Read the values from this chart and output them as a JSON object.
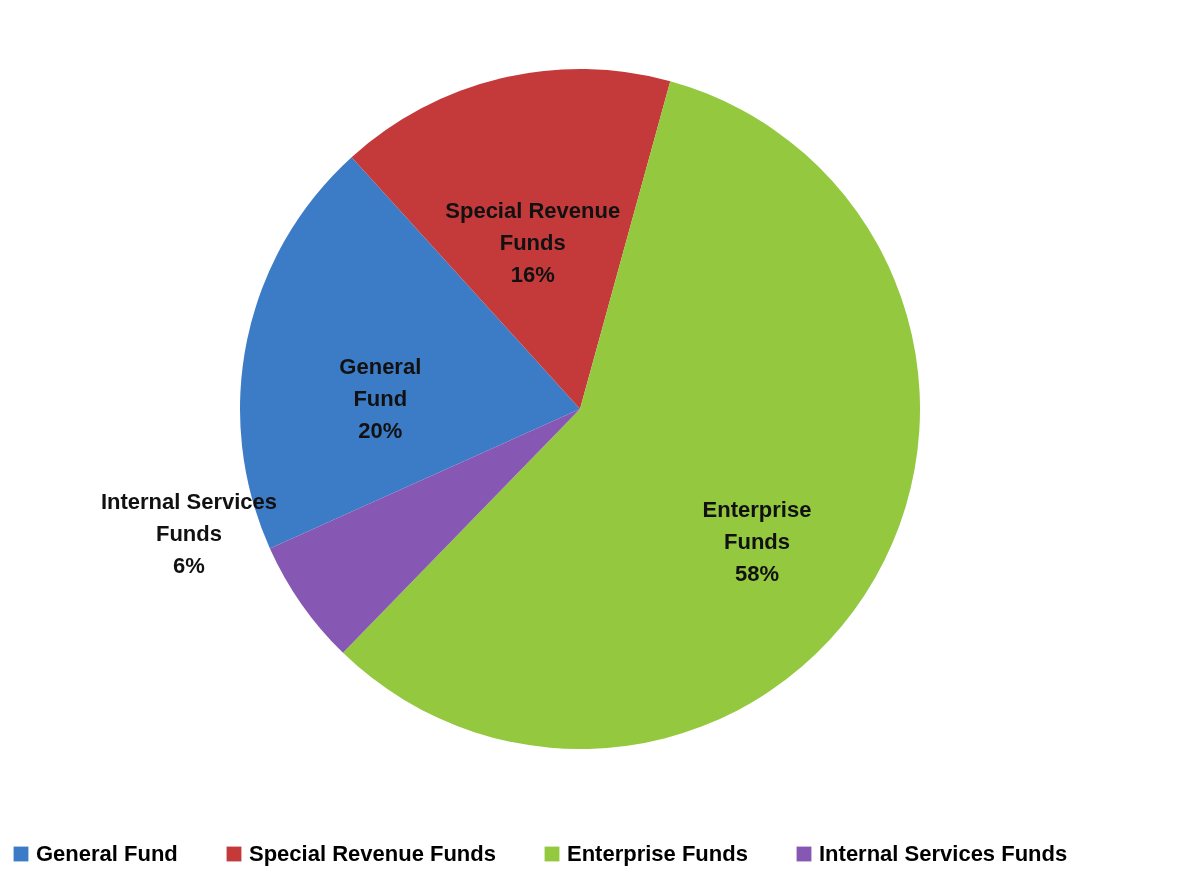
{
  "chart_data": {
    "type": "pie",
    "categories": [
      "General Fund",
      "Special Revenue Funds",
      "Enterprise Funds",
      "Internal Services Funds"
    ],
    "values": [
      20,
      16,
      58,
      6
    ],
    "value_labels": [
      "20%",
      "16%",
      "58%",
      "6%"
    ],
    "colors": [
      "#3c7cc6",
      "#c43a3a",
      "#93c83f",
      "#8657b3"
    ],
    "legend": "bottom"
  }
}
